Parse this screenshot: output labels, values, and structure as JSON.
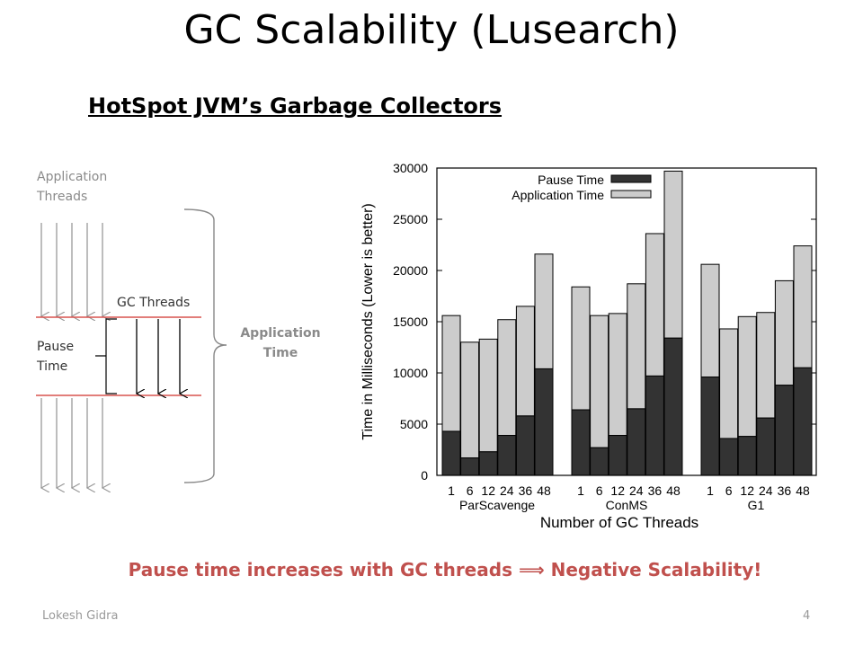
{
  "slide": {
    "title": "GC Scalability (Lusearch)",
    "subtitle": "HotSpot JVM’s Garbage Collectors",
    "conclusion_before": "Pause time increases with GC threads",
    "conclusion_arrow": "⟹",
    "conclusion_after": "Negative Scalability!",
    "footer_author": "Lokesh Gidra",
    "footer_page": "4",
    "colors": {
      "accent": "#c0504d",
      "pause": "#333333",
      "application": "#cccccc"
    }
  },
  "diagram": {
    "application_threads_line1": "Application",
    "application_threads_line2": "Threads",
    "gc_threads": "GC Threads",
    "pause_time_line1": "Pause",
    "pause_time_line2": "Time",
    "application_time_line1": "Application",
    "application_time_line2": "Time"
  },
  "chart_data": {
    "type": "bar",
    "stacked": true,
    "ylabel": "Time in Milliseconds (Lower is better)",
    "xlabel": "Number of GC Threads",
    "ylim": [
      0,
      30000
    ],
    "yticks": [
      0,
      5000,
      10000,
      15000,
      20000,
      25000,
      30000
    ],
    "legend_position": "top-left",
    "legend": [
      "Pause Time",
      "Application Time"
    ],
    "groups": [
      {
        "name": "ParScavenge",
        "categories": [
          "1",
          "6",
          "12",
          "24",
          "36",
          "48"
        ],
        "pause": [
          4300,
          1700,
          2300,
          3900,
          5800,
          10400
        ],
        "total": [
          15600,
          13000,
          13300,
          15200,
          16500,
          21600
        ]
      },
      {
        "name": "ConMS",
        "categories": [
          "1",
          "6",
          "12",
          "24",
          "36",
          "48"
        ],
        "pause": [
          6400,
          2700,
          3900,
          6500,
          9700,
          13400
        ],
        "total": [
          18400,
          15600,
          15800,
          18700,
          23600,
          29700
        ]
      },
      {
        "name": "G1",
        "categories": [
          "1",
          "6",
          "12",
          "24",
          "36",
          "48"
        ],
        "pause": [
          9600,
          3600,
          3800,
          5600,
          8800,
          10500
        ],
        "total": [
          20600,
          14300,
          15500,
          15900,
          19000,
          22400
        ]
      }
    ]
  }
}
